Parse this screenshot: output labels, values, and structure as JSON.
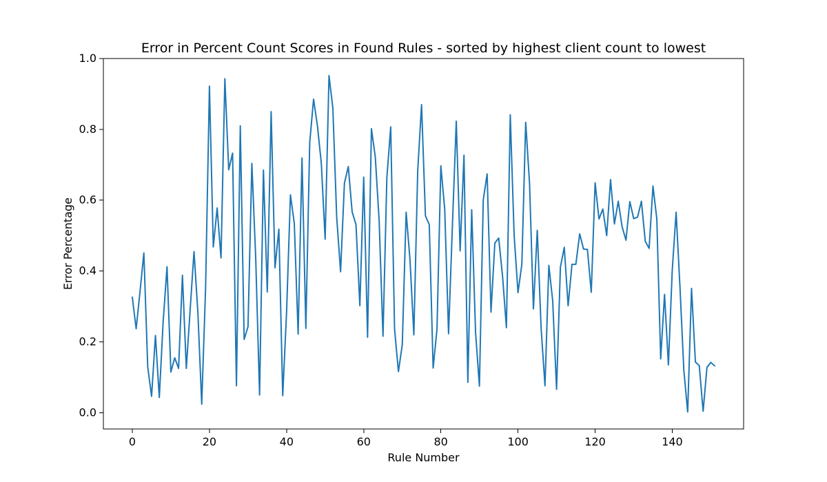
{
  "chart_data": {
    "type": "line",
    "title": "Error in Percent Count Scores in Found Rules - sorted by highest client count to lowest",
    "xlabel": "Rule Number",
    "ylabel": "Error Percentage",
    "xlim": [
      -7.5,
      158.5
    ],
    "ylim": [
      -0.046,
      1.0
    ],
    "xticks": [
      0,
      20,
      40,
      60,
      80,
      100,
      120,
      140
    ],
    "yticks": [
      0.0,
      0.2,
      0.4,
      0.6,
      0.8,
      1.0
    ],
    "xtick_labels": [
      "0",
      "20",
      "40",
      "60",
      "80",
      "100",
      "120",
      "140"
    ],
    "ytick_labels": [
      "0.0",
      "0.2",
      "0.4",
      "0.6",
      "0.8",
      "1.0"
    ],
    "grid": false,
    "legend": "none",
    "series": [
      {
        "color": "#1f77b4",
        "x": [
          0,
          1,
          2,
          3,
          4,
          5,
          6,
          7,
          8,
          9,
          10,
          11,
          12,
          13,
          14,
          15,
          16,
          17,
          18,
          19,
          20,
          21,
          22,
          23,
          24,
          25,
          26,
          27,
          28,
          29,
          30,
          31,
          32,
          33,
          34,
          35,
          36,
          37,
          38,
          39,
          40,
          41,
          42,
          43,
          44,
          45,
          46,
          47,
          48,
          49,
          50,
          51,
          52,
          53,
          54,
          55,
          56,
          57,
          58,
          59,
          60,
          61,
          62,
          63,
          64,
          65,
          66,
          67,
          68,
          69,
          70,
          71,
          72,
          73,
          74,
          75,
          76,
          77,
          78,
          79,
          80,
          81,
          82,
          83,
          84,
          85,
          86,
          87,
          88,
          89,
          90,
          91,
          92,
          93,
          94,
          95,
          96,
          97,
          98,
          99,
          100,
          101,
          102,
          103,
          104,
          105,
          106,
          107,
          108,
          109,
          110,
          111,
          112,
          113,
          114,
          115,
          116,
          117,
          118,
          119,
          120,
          121,
          122,
          123,
          124,
          125,
          126,
          127,
          128,
          129,
          130,
          131,
          132,
          133,
          134,
          135,
          136,
          137,
          138,
          139,
          140,
          141,
          142,
          143,
          144,
          145,
          146,
          147,
          148,
          149,
          150,
          151
        ],
        "values": [
          0.326,
          0.237,
          0.342,
          0.451,
          0.129,
          0.046,
          0.218,
          0.043,
          0.257,
          0.412,
          0.115,
          0.155,
          0.125,
          0.388,
          0.125,
          0.291,
          0.455,
          0.284,
          0.024,
          0.351,
          0.922,
          0.468,
          0.578,
          0.437,
          0.943,
          0.686,
          0.733,
          0.076,
          0.81,
          0.207,
          0.243,
          0.704,
          0.436,
          0.05,
          0.685,
          0.341,
          0.85,
          0.409,
          0.518,
          0.048,
          0.284,
          0.615,
          0.535,
          0.222,
          0.719,
          0.238,
          0.763,
          0.885,
          0.81,
          0.705,
          0.49,
          0.952,
          0.86,
          0.551,
          0.398,
          0.648,
          0.695,
          0.567,
          0.531,
          0.302,
          0.665,
          0.213,
          0.802,
          0.722,
          0.543,
          0.216,
          0.663,
          0.807,
          0.236,
          0.116,
          0.192,
          0.566,
          0.432,
          0.22,
          0.683,
          0.87,
          0.556,
          0.531,
          0.126,
          0.236,
          0.697,
          0.575,
          0.223,
          0.529,
          0.823,
          0.457,
          0.727,
          0.086,
          0.573,
          0.227,
          0.075,
          0.601,
          0.674,
          0.284,
          0.479,
          0.493,
          0.385,
          0.24,
          0.841,
          0.501,
          0.339,
          0.419,
          0.82,
          0.647,
          0.293,
          0.515,
          0.238,
          0.076,
          0.416,
          0.316,
          0.066,
          0.411,
          0.467,
          0.302,
          0.419,
          0.419,
          0.505,
          0.462,
          0.461,
          0.34,
          0.649,
          0.547,
          0.575,
          0.5,
          0.658,
          0.533,
          0.597,
          0.525,
          0.487,
          0.596,
          0.548,
          0.552,
          0.597,
          0.484,
          0.464,
          0.64,
          0.547,
          0.152,
          0.334,
          0.135,
          0.403,
          0.566,
          0.355,
          0.12,
          0.002,
          0.351,
          0.143,
          0.133,
          0.004,
          0.128,
          0.142,
          0.132
        ]
      }
    ]
  }
}
